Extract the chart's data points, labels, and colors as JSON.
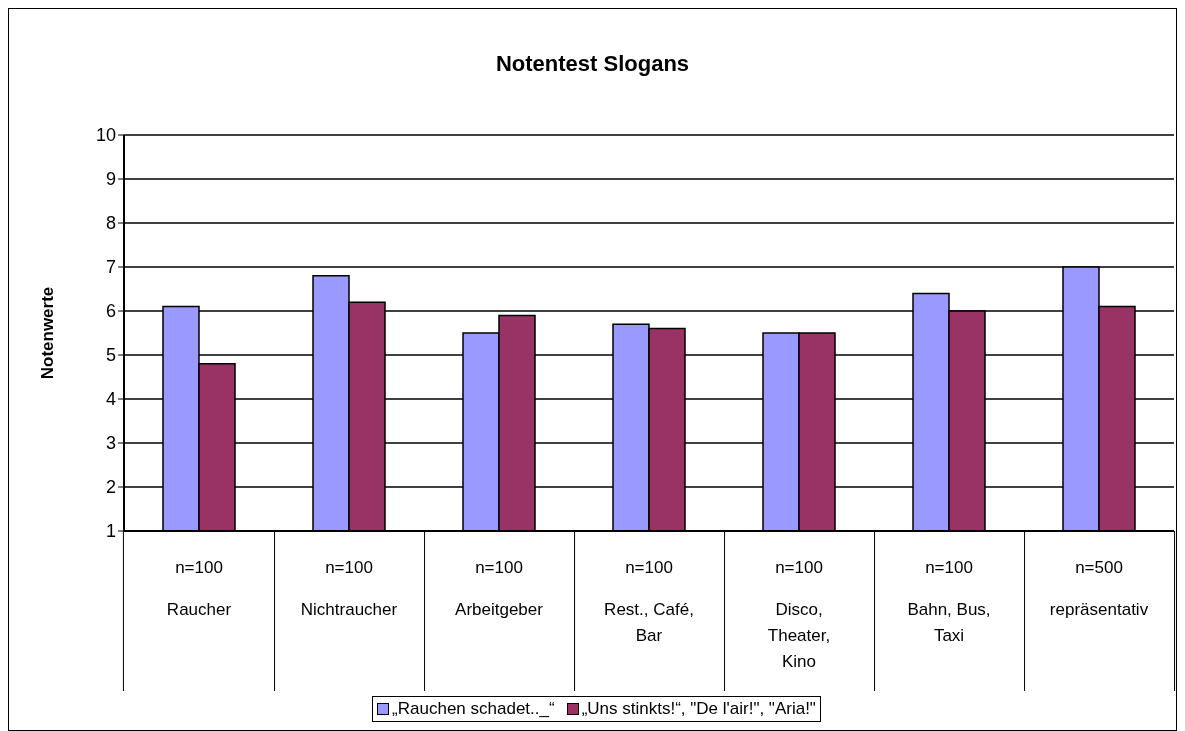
{
  "chart_data": {
    "type": "bar",
    "title": "Notentest Slogans",
    "ylabel": "Notenwerte",
    "categories": [
      "n=100\nRaucher",
      "n=100\nNichtraucher",
      "n=100\nArbeitgeber",
      "n=100\nRest., Café,\nBar",
      "n=100\nDisco,\nTheater,\nKino",
      "n=100\nBahn, Bus,\nTaxi",
      "n=500\nrepräsentativ"
    ],
    "series": [
      {
        "name": "„Rauchen schadet.._“",
        "color": "#9999ff",
        "values": [
          6.1,
          6.8,
          5.5,
          5.7,
          5.5,
          6.4,
          7.0
        ]
      },
      {
        "name": "„Uns stinkts!“, \"De l'air!\", \"Aria!\"",
        "color": "#993366",
        "values": [
          4.8,
          6.2,
          5.9,
          5.6,
          5.5,
          6.0,
          6.1
        ]
      }
    ],
    "ylim": [
      1,
      10
    ],
    "yticks": [
      1,
      2,
      3,
      4,
      5,
      6,
      7,
      8,
      9,
      10
    ],
    "grid": "y",
    "legend": "bottom"
  }
}
